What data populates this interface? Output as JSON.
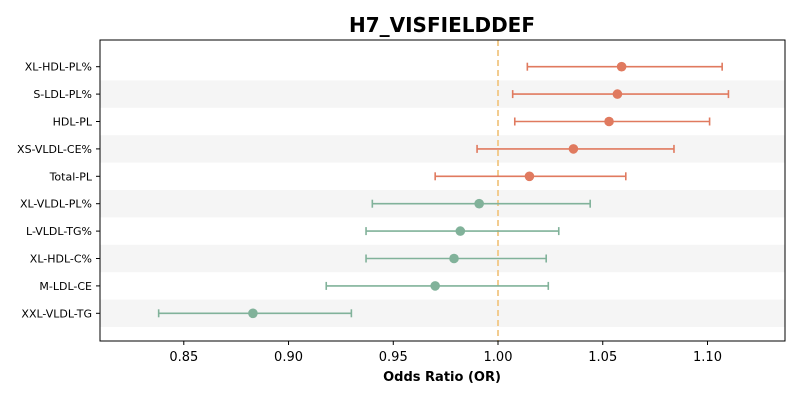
{
  "chart_data": {
    "type": "forest",
    "title": "H7_VISFIELDDEF",
    "xlabel": "Odds Ratio (OR)",
    "ylabel": "",
    "xlim": [
      0.81,
      1.137
    ],
    "xticks": [
      0.85,
      0.9,
      0.95,
      1.0,
      1.05,
      1.1
    ],
    "xtick_labels": [
      "0.85",
      "0.90",
      "0.95",
      "1.00",
      "1.05",
      "1.10"
    ],
    "reference_line": 1.0,
    "colors": {
      "positive": "#E07A5F",
      "negative": "#81B29A",
      "reference": "#F2CC8F",
      "band": "#F5F5F5"
    },
    "items": [
      {
        "label": "XL-HDL-PL%",
        "or": 1.059,
        "lower": 1.014,
        "upper": 1.107
      },
      {
        "label": "S-LDL-PL%",
        "or": 1.057,
        "lower": 1.007,
        "upper": 1.11
      },
      {
        "label": "HDL-PL",
        "or": 1.053,
        "lower": 1.008,
        "upper": 1.101
      },
      {
        "label": "XS-VLDL-CE%",
        "or": 1.036,
        "lower": 0.99,
        "upper": 1.084
      },
      {
        "label": "Total-PL",
        "or": 1.015,
        "lower": 0.97,
        "upper": 1.061
      },
      {
        "label": "XL-VLDL-PL%",
        "or": 0.991,
        "lower": 0.94,
        "upper": 1.044
      },
      {
        "label": "L-VLDL-TG%",
        "or": 0.982,
        "lower": 0.937,
        "upper": 1.029
      },
      {
        "label": "XL-HDL-C%",
        "or": 0.979,
        "lower": 0.937,
        "upper": 1.023
      },
      {
        "label": "M-LDL-CE",
        "or": 0.97,
        "lower": 0.918,
        "upper": 1.024
      },
      {
        "label": "XXL-VLDL-TG",
        "or": 0.883,
        "lower": 0.838,
        "upper": 0.93
      }
    ]
  }
}
